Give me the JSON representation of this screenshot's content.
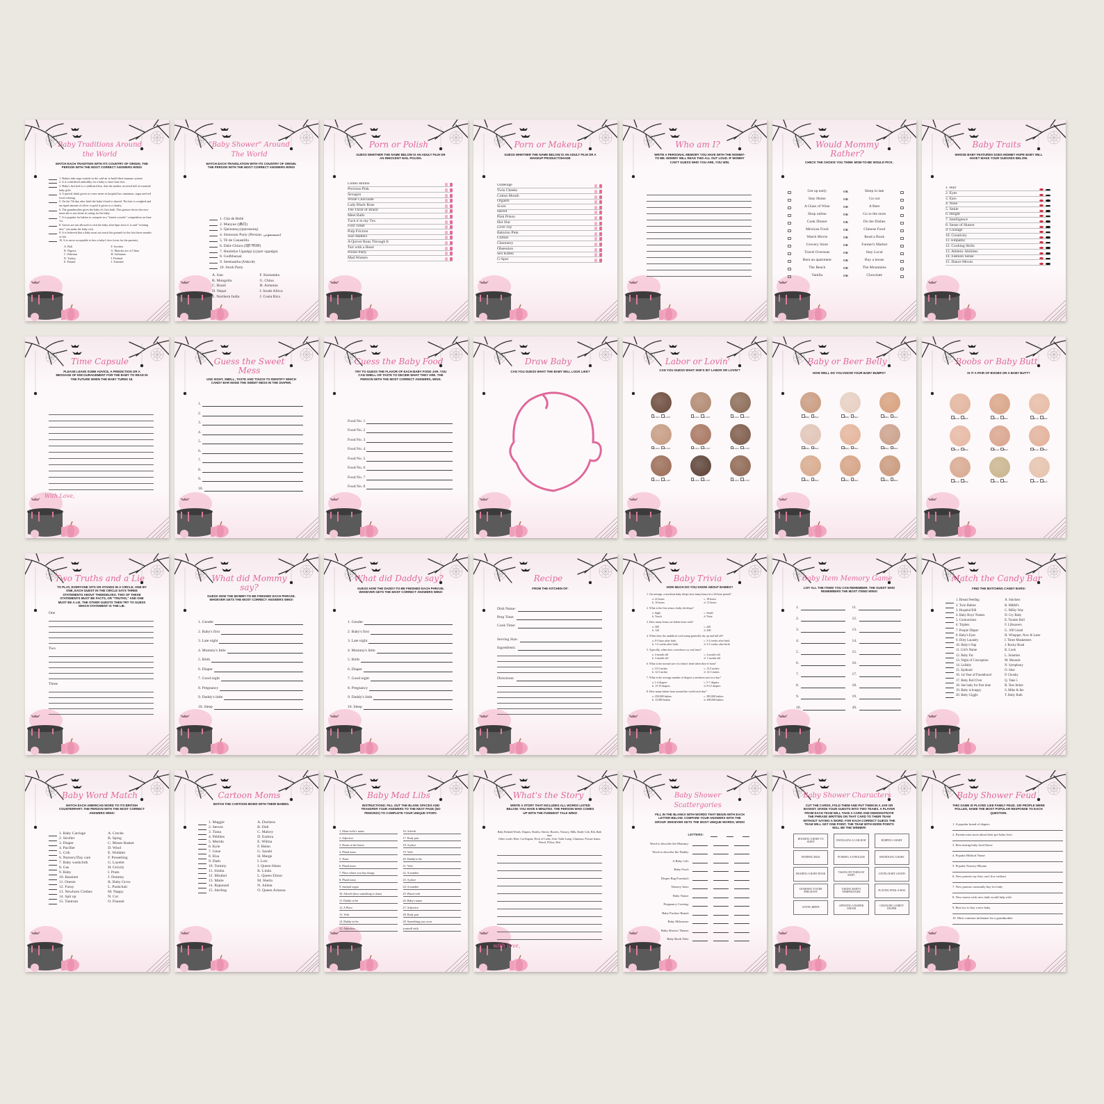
{
  "colors": {
    "background": "#ebe7e1",
    "accent": "#e0679a",
    "paper": "#fdf9fa"
  },
  "cards": [
    {
      "layout": "numbered",
      "title": "Baby Traditions Around the World",
      "subtitle": "Match each tradition with its country of origin. The person with the most correct answers wins!",
      "items": [
        "1. Babies take naps outside in the cold air to build their immune system",
        "2. It is considered unhealthy for a baby to have bare feet.",
        "3. Baby's first bed is a cardboard box, that the mother received full of essential baby gifts.",
        "4. A special drink given to a new mom in hospital has cinnamon, sugar and red food coloring.",
        "5. On the 7th day after birth the baby's head is shaved. The hair is weighed and an equal amount of silver or gold is given to a charity.",
        "6. The grandmother gives the baby it's first bath. This gesture shows the new mom she is not alone in caring for the baby.",
        "7. It is popular for babies to compete in a \"fastest crawler\" competition on June 1st.",
        "8. Guests are not allowed to visit the baby after 6pm since it is said \"evening dew\" can make the baby sick.",
        "9. It is believed that a baby must not touch the ground for the first three months of life.",
        "10. It is never acceptable to kiss a baby's face (even for the parents)."
      ],
      "options": [
        "A. Bali",
        "F. Sweden",
        "B. Nigeria",
        "G. Manchu are of China",
        "C. Pakistan",
        "H. Lithuania",
        "D. Turkey",
        "I. Finland",
        "E. Poland",
        "J. Trinidad"
      ]
    },
    {
      "layout": "numbered",
      "title": "\"Baby Shower\" Around The World",
      "subtitle": "Match each translation with its country of origin. The person with the most correct answers wins!",
      "items": [
        "1. Chá de Bebê",
        "2. Manyue (满月)",
        "3. Qarasunq (qաrasunq)",
        "4. Sismooni Party (Persian: سیسمونی)",
        "5. Tê de Canastilla",
        "6. Dahi-Chiura (दही चिउरा)",
        "7. Huuhdyn Ugaalga (уураг ugaalga)",
        "8. Godbharaai",
        "9. Seemantha (ಸೀಮಂತ)",
        "10. Stork Party"
      ],
      "options": [
        "A. Iran",
        "F. Karnataka",
        "B. Mongolia",
        "G. China",
        "C. Brasil",
        "H. Armenia",
        "D. Nepal",
        "I. South Africa",
        "E. Northern India",
        "J. Costa Rica"
      ]
    },
    {
      "layout": "choice",
      "title": "Porn or Polish",
      "subtitle": "Guess whether the name below is an adult film or an innocent nail polish.",
      "icons": [
        "film-icon",
        "nail-polish-icon"
      ],
      "items": [
        "Limbo Bimbo",
        "Precious Pink",
        "Sexagon",
        "White Chocolate",
        "Lady Black Rose",
        "The Thrill of Brazil",
        "Meet Balls",
        "Tuck it in my Tux",
        "First Timer",
        "Pulp Friction",
        "Size Matters",
        "A Quiver Runs Through It",
        "Tart with a Heart",
        "Polish Party",
        "Mad Women"
      ]
    },
    {
      "layout": "choice",
      "title": "Porn or Makeup",
      "subtitle": "Guess whether the name below is an adult film or a makeup product/shade",
      "icons": [
        "film-icon",
        "makeup-icon"
      ],
      "items": [
        "Underage",
        "Twin Cheeks",
        "Cotton Mouth",
        "Orgasm",
        "Score",
        "Harlot",
        "Pink Prison",
        "Hot Slut",
        "Love Toy",
        "Babylon Pink",
        "Climax",
        "Chemistry",
        "Obsession",
        "Sex Kitten",
        "G-Spot"
      ]
    },
    {
      "layout": "lines",
      "title": "Who am I?",
      "subtitle": "Write a personal memory you have with the mommy-to-be. Mommy will read this all out loud. If mommy can't guess who you are, you win."
    },
    {
      "layout": "pairs",
      "title": "Would Mommy Rather?",
      "subtitle": "Check the choice you think mom-to-be would pick.",
      "or_label": "OR",
      "items": [
        [
          "Get up early",
          "Sleep in late"
        ],
        [
          "Stay Home",
          "Go out"
        ],
        [
          "A Glass of Wine",
          "A Beer"
        ],
        [
          "Shop online",
          "Go to the store"
        ],
        [
          "Cook Dinner",
          "Do the Dishes"
        ],
        [
          "Mexican Food",
          "Chinese Food"
        ],
        [
          "Watch Movie",
          "Read a Book"
        ],
        [
          "Grocery Store",
          "Farmer's Market"
        ],
        [
          "Travel Overseas",
          "Stay Local"
        ],
        [
          "Rent an apartment",
          "Buy a house"
        ],
        [
          "The Beach",
          "The Mountains"
        ],
        [
          "Vanilla",
          "Chocolate"
        ]
      ]
    },
    {
      "layout": "choice",
      "title": "Baby Traits",
      "subtitle": "Whose baby features does mommy hope baby will have? Make your guesses below.",
      "icons": [
        "lips-icon",
        "mustache-icon"
      ],
      "items": [
        "1. Hair",
        "2. Eyes",
        "3. Ears",
        "4. Nose",
        "5. Smile",
        "6. Height",
        "7. Intelligence",
        "8. Sense of Humor",
        "9. Courage",
        "10. Creativity",
        "11. Empathy",
        "12. Cooking Skills",
        "13. Athletic Abilities",
        "14. Fashion Sense",
        "15. Dance Moves"
      ]
    },
    {
      "layout": "lines",
      "title": "Time Capsule",
      "subtitle": "Please leave some advice, a prediction or a message of encouragement for the baby to read in the future when the baby turns 18.",
      "footer": "With Love,"
    },
    {
      "layout": "numlines",
      "title": "Guess the Sweet Mess",
      "subtitle": "Use sight, smell, taste and touch to identify which candy bar made the sweet mess in the diaper.",
      "items": [
        "1.",
        "2.",
        "3.",
        "4.",
        "5.",
        "6.",
        "7.",
        "8.",
        "9.",
        "10."
      ]
    },
    {
      "layout": "numlines",
      "title": "Guess the Baby Food",
      "subtitle": "Try to guess the flavor of each baby food jar. You can smell or taste to decide what they are. The person with the most correct answers, wins.",
      "items": [
        "Food No. 1",
        "Food No. 2",
        "Food No. 3",
        "Food No. 4",
        "Food No. 5",
        "Food No. 6",
        "Food No. 7",
        "Food No. 8"
      ]
    },
    {
      "layout": "draw",
      "title": "Draw Baby",
      "subtitle": "Can you guess what the baby will look like?"
    },
    {
      "layout": "photos",
      "title": "Labor or Lovin'",
      "subtitle": "Can you guess what she's in? Labor or lovin'?",
      "labels": [
        "Labor",
        "Lovin'"
      ],
      "photo_colors": [
        "#6b4a3a",
        "#b08870",
        "#8a6a55",
        "#c59a80",
        "#a77560",
        "#7c5a48",
        "#9a6b55",
        "#5a4035",
        "#8d6650"
      ]
    },
    {
      "layout": "photos",
      "title": "Baby or Beer Belly",
      "subtitle": "How well do you know your baby bumps?",
      "labels": [
        "Baby",
        "Beer"
      ],
      "photo_colors": [
        "#c99a7e",
        "#e6cfc0",
        "#d7a07c",
        "#e0c4b5",
        "#e4b49a",
        "#caa08a",
        "#d8a98c",
        "#d5a283",
        "#c9987a"
      ]
    },
    {
      "layout": "photos",
      "title": "Boobs or Baby Butt",
      "subtitle": "Is it a pair of boobs or a baby butt?",
      "labels": [
        "Boob",
        "Butt"
      ],
      "photo_colors": [
        "#e2b49c",
        "#d9a486",
        "#e6bba4",
        "#e7b8a2",
        "#d9a48c",
        "#e2b19a",
        "#d8a890",
        "#c9b48c",
        "#e6c2ad"
      ]
    },
    {
      "layout": "truths",
      "title": "Two Truths and a Lie",
      "subtitle": "To play, everyone sits or stands in a circle. One by one, each guest in the circle says three statements about themselves. Two of these statements must be facts, or \"truths,\" and one must be a lie. The other guests then try to guess which statement is the lie.",
      "items": [
        "One",
        "Two",
        "Three"
      ]
    },
    {
      "layout": "numlines",
      "title": "What did Mommy say?",
      "subtitle": "Guess how the mommy-to-be finished each phrase. Whoever gets the most correct answers wins!",
      "items": [
        "1. Gender",
        "2. Baby's first",
        "3. Late night",
        "4. Mommy's little",
        "5. Birth",
        "6. Diaper",
        "7. Good night",
        "8. Pregnancy",
        "9. Daddy's little",
        "10. Sleep"
      ]
    },
    {
      "layout": "numlines",
      "title": "What did Daddy say?",
      "subtitle": "Guess how the daddy-to-be finished each phrase. Whoever gets the most correct answers wins!",
      "items": [
        "1. Gender",
        "2. Baby's first",
        "3. Late night",
        "4. Mommy's little",
        "5. Birth",
        "6. Diaper",
        "7. Good night",
        "8. Pregnancy",
        "9. Daddy's little",
        "10. Sleep"
      ]
    },
    {
      "layout": "recipe",
      "title": "Recipe",
      "subtitle": "From the kitchen of:",
      "items": [
        "Dish Name:",
        "Prep Time:",
        "Cook Time:",
        "Serving Size:",
        "Ingredients:",
        "Directions:"
      ]
    },
    {
      "layout": "trivia",
      "title": "Baby Trivia",
      "subtitle": "How much do you know about babies?",
      "items": [
        {
          "q": "1. On average, a newborn baby sleeps how many hours in a 24-hour period?",
          "a": [
            "a. 22 hours",
            "c. 18 hours",
            "b. 16 hours",
            "d. 12 hours"
          ]
        },
        {
          "q": "2. What is the first sense a baby develops?",
          "a": [
            "a. Sight",
            "c. Smell",
            "b. Touch",
            "d. Taste"
          ]
        },
        {
          "q": "3. How many bones are babies born with?",
          "a": [
            "a. 300",
            "c. 420",
            "b. 120",
            "d. 200"
          ]
        },
        {
          "q": "4. When does the umbilical cord stump generally dry up and fall off?",
          "a": [
            "a. 0-3 days after birth",
            "c. 3-4 weeks after birth",
            "b. 1-2 weeks after birth",
            "d. 4-5 weeks after birth"
          ]
        },
        {
          "q": "5. Typically, when does a newborn cry real tears?",
          "a": [
            "a. 4 month old",
            "c. 2 month old",
            "b. 3 month old",
            "d. 1 month old"
          ]
        },
        {
          "q": "6. What is the normal size of a baby's head when they're born?",
          "a": [
            "a. 10.3 inches",
            "c. 13.5 inches",
            "b. 12.5 inches",
            "d. 14.5 inches"
          ]
        },
        {
          "q": "7. What is the average number of diapers a newborn uses in a day?",
          "a": [
            "a. 1-4 diapers",
            "c. 5-7 diapers",
            "b. 15-19 diapers",
            "d. 8-12 diapers"
          ]
        },
        {
          "q": "8. How many babies born around the world each day?",
          "a": [
            "a. 250,000 babies",
            "c. 385,000 babies",
            "b. 15,000 babies",
            "d. 490,000 babies"
          ]
        }
      ]
    },
    {
      "layout": "memory",
      "title": "Baby Item Memory Game",
      "subtitle": "List all the items you can remember. The guest who remembers the most items wins!",
      "items": [
        "1.",
        "11.",
        "2.",
        "12.",
        "3.",
        "13.",
        "4.",
        "14.",
        "5.",
        "15.",
        "6.",
        "16.",
        "7.",
        "17.",
        "8.",
        "18.",
        "9.",
        "19.",
        "10.",
        "20."
      ]
    },
    {
      "layout": "match",
      "title": "Match the Candy Bar",
      "subtitle": "Find the matching candy bars!",
      "items": [
        "1. Breast Feeding",
        "2. Twin Babies",
        "3. Hospital Bill",
        "4. Baby Boys' Names",
        "5. Contractions",
        "6. Triplets",
        "7. Poopie Diaper",
        "8. Baby's Eyes",
        "9. Dirty Laundry",
        "10. Baby's Nap",
        "11. Girl's Name",
        "12. Baby Fat",
        "13. Night of Conception",
        "14. Lullaby",
        "15. Epidural",
        "16. 1st Year of Parenthood",
        "17. Baby Roll Over",
        "18. See baby for first time",
        "19. Baby is hungry",
        "20. Baby Giggle"
      ],
      "options": [
        "A. Snickers",
        "B. M&M's",
        "C. Milky Way",
        "D. Cry Baby",
        "E. Tootsie Roll",
        "F. Lifesavers",
        "G. 100 Grand",
        "H. Whopper, Now & Later",
        "I. Three Musketeers",
        "J. Rocky Road",
        "K. Look",
        "L. Smarties",
        "M. Mounds",
        "N. Symphony",
        "O. Skor",
        "P. Chunky",
        "Q. Take 5",
        "R. Tear Jerker",
        "S. Mike & Ike",
        "T. Baby Ruth"
      ]
    },
    {
      "layout": "match",
      "title": "Baby Word Match",
      "subtitle": "Match each American word to its British counterpart. The person with the most correct answers wins!",
      "items": [
        "1. Baby Carriage",
        "2. Stroller",
        "3. Diaper",
        "4. Pacifier",
        "5. Crib",
        "6. Nursery/Day care",
        "7. Baby washcloth",
        "8. Gas",
        "9. Baby",
        "10. Bassinet",
        "11. Onesie",
        "12. Fussy",
        "13. Newborn Clothes",
        "14. Spit up",
        "15. Tantrum"
      ],
      "options": [
        "A. Creche",
        "B. Sprog",
        "C. Moses Basket",
        "D. Wind",
        "E. Wobbler",
        "F. Possetting",
        "G. Layette",
        "H. Grizzly",
        "I. Pram",
        "J. Dummy",
        "K. Baby Grow",
        "L. Pushchair",
        "M. Nappy",
        "N. Cot",
        "O. Flannel"
      ]
    },
    {
      "layout": "match",
      "title": "Cartoon Moms",
      "subtitle": "Match the cartoon moms with their babies.",
      "items": [
        "1. Maggie",
        "2. Stewie",
        "3. Tiana",
        "4. Pebbles",
        "5. Merida",
        "6. Kyle",
        "7. Gene",
        "8. Elsa",
        "9. Dash",
        "10. Tommy",
        "11. Simba",
        "12. Mirabel",
        "13. Marie",
        "14. Rapunzel",
        "15. Sterling"
      ],
      "options": [
        "A. Duchess",
        "B. Didi",
        "C. Malory",
        "D. Eudora",
        "E. Wilma",
        "F. Helen",
        "G. Sarabi",
        "H. Marge",
        "I. Lois",
        "J. Queen Iduna",
        "K. Linda",
        "L. Queen Elinor",
        "M. Sheila",
        "N. Julieta",
        "O. Queen Arianna"
      ]
    },
    {
      "layout": "madlibs",
      "title": "Baby Mad Libs",
      "subtitle": "Instructions: fill out the blank spaces and transfer your answers to the next page (no peeking!) to complete your unique story.",
      "items": [
        "1. Mom-to-be's name",
        "2. Adjective",
        "3. Room in the house",
        "4. Plural noun",
        "5. Noun",
        "6. Plural noun",
        "7. Place where you buy things",
        "8. Plural noun",
        "9. Internal organ",
        "10. Adverb (how something is done)",
        "11. Daddy-to-be",
        "12. A Place",
        "13. Verb",
        "14. Daddy-to-be",
        "15. Adjective"
      ],
      "items2": [
        "16. Adverb",
        "17. Body part",
        "18. A place",
        "19. Verb",
        "20. Daddy-to-be",
        "21. Verb",
        "22. A number",
        "23. A place",
        "24. A number",
        "25. Plural verb",
        "26. Baby's name",
        "27. Adjective",
        "28. Body part",
        "29. Something you cover",
        "yourself with"
      ]
    },
    {
      "layout": "story",
      "title": "What's the Story",
      "subtitle": "Write a story that includes all words listed below. You have 5 minutes. The person who comes up with the funniest tale wins!",
      "words": [
        "Baby Related Words: Diapers, Bottles, Onesie, Booties, Nursery, Milk, Rattle Crib, Bib, Bath time",
        "Other words: Beer, Car Engine, Deck of Cards, Sofa, Table Lamp, Chainsaw, Picture frame, Pencil, Pillow, Bed"
      ],
      "footer": "with love,"
    },
    {
      "layout": "scatter",
      "title": "Baby Shower Scattergories",
      "subtitle": "Fill in the blanks with words that begin with each letter below. Compare your answers with the group. Whoever gets the most unique words, wins!",
      "letters_label": "LETTERS:",
      "items": [
        "Word to describe the Mommy:",
        "Word to describe the Daddy:",
        "A Baby Gift:",
        "Baby Food:",
        "Diaper Bag Essential:",
        "Nursery Item:",
        "Baby Name:",
        "Pregnancy Craving:",
        "Baby Product Brand:",
        "Baby Milestone:",
        "Baby Shower Theme:",
        "Baby Book Title:"
      ]
    },
    {
      "layout": "charades",
      "title": "Baby Shower Characters",
      "subtitle": "Cut the cards, fold them and put them in a jar or basket. Divide your guests into two teams. A player from each team will take a card and demonstrate the phrase written on that card to their team without saying a word. For each correct guess the team will get one point. The team with more points will be the winner!",
      "items": [
        "Rocking a baby to sleep",
        "Installing a car seat",
        "Burping a baby",
        "Pumping milk",
        "Pushing a stroller",
        "Swaddling a baby",
        "Reading a baby book",
        "Taking pictures of baby",
        "Giving baby a bath",
        "Learning you're pregnant",
        "Taking baby's temperature",
        "Playing peek-a-boo",
        "Giving birth",
        "Applying a diaper cream",
        "Changing a dirty diaper"
      ]
    },
    {
      "layout": "feud",
      "title": "Baby Shower Feud",
      "subtitle": "This game is played like family feud. 100 people were polled, name the most popular response to each question.",
      "items": [
        "1. A popular brand of diapers",
        "2. Parents miss most about their pre-baby lives",
        "3. Best tasting baby food flavor",
        "4. Popular Biblical Name",
        "5. Popular Nursery Rhyme",
        "6. New parents say they can't live without",
        "7. New parents constantly buy for baby",
        "8. New moms wish new dads would help with",
        "9. Best toy to buy a new baby",
        "10. Most common nickname for a grandmother"
      ]
    }
  ]
}
